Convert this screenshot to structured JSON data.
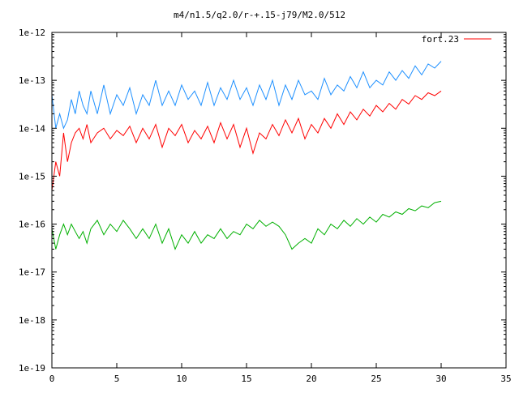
{
  "chart_data": {
    "type": "line",
    "title": "m4/n1.5/q2.0/r-+.15-j79/M2.0/512",
    "xlabel": "",
    "ylabel": "",
    "xlim": [
      0,
      35
    ],
    "ylim": [
      1e-19,
      1e-12
    ],
    "yscale": "log",
    "grid": false,
    "legend_position": "top-right",
    "x_ticks": [
      0,
      5,
      10,
      15,
      20,
      25,
      30,
      35
    ],
    "x_tick_labels": [
      "0",
      "5",
      "10",
      "15",
      "20",
      "25",
      "30",
      "35"
    ],
    "y_ticks": [
      1e-19,
      1e-18,
      1e-17,
      1e-16,
      1e-15,
      1e-14,
      1e-13,
      1e-12
    ],
    "y_tick_labels": [
      "1e-19",
      "1e-18",
      "1e-17",
      "1e-16",
      "1e-15",
      "1e-14",
      "1e-13",
      "1e-12"
    ],
    "series": [
      {
        "name": "fort.23",
        "color": "#ff0000",
        "x": [
          0.0,
          0.3,
          0.6,
          0.9,
          1.2,
          1.5,
          1.8,
          2.1,
          2.4,
          2.7,
          3.0,
          3.5,
          4.0,
          4.5,
          5.0,
          5.5,
          6.0,
          6.5,
          7.0,
          7.5,
          8.0,
          8.5,
          9.0,
          9.5,
          10.0,
          10.5,
          11.0,
          11.5,
          12.0,
          12.5,
          13.0,
          13.5,
          14.0,
          14.5,
          15.0,
          15.5,
          16.0,
          16.5,
          17.0,
          17.5,
          18.0,
          18.5,
          19.0,
          19.5,
          20.0,
          20.5,
          21.0,
          21.5,
          22.0,
          22.5,
          23.0,
          23.5,
          24.0,
          24.5,
          25.0,
          25.5,
          26.0,
          26.5,
          27.0,
          27.5,
          28.0,
          28.5,
          29.0,
          29.5,
          30.0
        ],
        "values": [
          5e-16,
          2e-15,
          1e-15,
          8e-15,
          2e-15,
          5e-15,
          8e-15,
          1e-14,
          6e-15,
          1.2e-14,
          5e-15,
          8e-15,
          1e-14,
          6e-15,
          9e-15,
          7e-15,
          1.1e-14,
          5e-15,
          1e-14,
          6e-15,
          1.2e-14,
          4e-15,
          1e-14,
          7e-15,
          1.2e-14,
          5e-15,
          9e-15,
          6e-15,
          1.1e-14,
          5e-15,
          1.3e-14,
          6e-15,
          1.2e-14,
          4e-15,
          1e-14,
          3e-15,
          8e-15,
          6e-15,
          1.2e-14,
          7e-15,
          1.5e-14,
          8e-15,
          1.6e-14,
          6e-15,
          1.2e-14,
          8e-15,
          1.6e-14,
          1e-14,
          2e-14,
          1.2e-14,
          2.2e-14,
          1.5e-14,
          2.5e-14,
          1.8e-14,
          3e-14,
          2.2e-14,
          3.3e-14,
          2.5e-14,
          4e-14,
          3.2e-14,
          4.8e-14,
          4e-14,
          5.5e-14,
          4.8e-14,
          6e-14
        ]
      },
      {
        "color": "#1e90ff",
        "x": [
          0.0,
          0.3,
          0.6,
          0.9,
          1.2,
          1.5,
          1.8,
          2.1,
          2.4,
          2.7,
          3.0,
          3.5,
          4.0,
          4.5,
          5.0,
          5.5,
          6.0,
          6.5,
          7.0,
          7.5,
          8.0,
          8.5,
          9.0,
          9.5,
          10.0,
          10.5,
          11.0,
          11.5,
          12.0,
          12.5,
          13.0,
          13.5,
          14.0,
          14.5,
          15.0,
          15.5,
          16.0,
          16.5,
          17.0,
          17.5,
          18.0,
          18.5,
          19.0,
          19.5,
          20.0,
          20.5,
          21.0,
          21.5,
          22.0,
          22.5,
          23.0,
          23.5,
          24.0,
          24.5,
          25.0,
          25.5,
          26.0,
          26.5,
          27.0,
          27.5,
          28.0,
          28.5,
          29.0,
          29.5,
          30.0
        ],
        "values": [
          5e-14,
          1e-14,
          2e-14,
          1e-14,
          1.5e-14,
          4e-14,
          2e-14,
          6e-14,
          3e-14,
          2e-14,
          6e-14,
          2e-14,
          8e-14,
          2e-14,
          5e-14,
          3e-14,
          7e-14,
          2e-14,
          5e-14,
          3e-14,
          1e-13,
          3e-14,
          6e-14,
          3e-14,
          8e-14,
          4e-14,
          6e-14,
          3e-14,
          9e-14,
          3e-14,
          7e-14,
          4e-14,
          1e-13,
          4e-14,
          7e-14,
          3e-14,
          8e-14,
          4e-14,
          1e-13,
          3e-14,
          8e-14,
          4e-14,
          1e-13,
          5e-14,
          6e-14,
          4e-14,
          1.1e-13,
          5e-14,
          8e-14,
          6e-14,
          1.2e-13,
          7e-14,
          1.5e-13,
          7e-14,
          1e-13,
          8e-14,
          1.5e-13,
          1e-13,
          1.6e-13,
          1.1e-13,
          2e-13,
          1.3e-13,
          2.2e-13,
          1.8e-13,
          2.5e-13
        ]
      },
      {
        "color": "#00b000",
        "x": [
          0.0,
          0.3,
          0.6,
          0.9,
          1.2,
          1.5,
          1.8,
          2.1,
          2.4,
          2.7,
          3.0,
          3.5,
          4.0,
          4.5,
          5.0,
          5.5,
          6.0,
          6.5,
          7.0,
          7.5,
          8.0,
          8.5,
          9.0,
          9.5,
          10.0,
          10.5,
          11.0,
          11.5,
          12.0,
          12.5,
          13.0,
          13.5,
          14.0,
          14.5,
          15.0,
          15.5,
          16.0,
          16.5,
          17.0,
          17.5,
          18.0,
          18.5,
          19.0,
          19.5,
          20.0,
          20.5,
          21.0,
          21.5,
          22.0,
          22.5,
          23.0,
          23.5,
          24.0,
          24.5,
          25.0,
          25.5,
          26.0,
          26.5,
          27.0,
          27.5,
          28.0,
          28.5,
          29.0,
          29.5,
          30.0
        ],
        "values": [
          8e-17,
          3e-17,
          6e-17,
          1e-16,
          6e-17,
          1e-16,
          7e-17,
          5e-17,
          7e-17,
          4e-17,
          8e-17,
          1.2e-16,
          6e-17,
          1e-16,
          7e-17,
          1.2e-16,
          8e-17,
          5e-17,
          8e-17,
          5e-17,
          1e-16,
          4e-17,
          8e-17,
          3e-17,
          6e-17,
          4e-17,
          7e-17,
          4e-17,
          6e-17,
          5e-17,
          8e-17,
          5e-17,
          7e-17,
          6e-17,
          1e-16,
          8e-17,
          1.2e-16,
          9e-17,
          1.1e-16,
          9e-17,
          6e-17,
          3e-17,
          4e-17,
          5e-17,
          4e-17,
          8e-17,
          6e-17,
          1e-16,
          8e-17,
          1.2e-16,
          9e-17,
          1.3e-16,
          1e-16,
          1.4e-16,
          1.1e-16,
          1.6e-16,
          1.4e-16,
          1.8e-16,
          1.6e-16,
          2.1e-16,
          1.9e-16,
          2.4e-16,
          2.2e-16,
          2.8e-16,
          3e-16
        ]
      }
    ]
  }
}
